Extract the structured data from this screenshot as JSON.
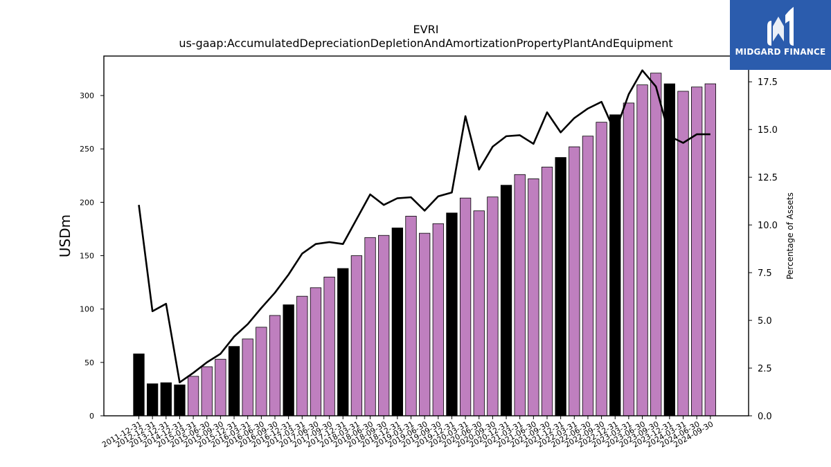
{
  "brand": {
    "name": "MIDGARD FINANCE",
    "bg_color": "#2b5cad"
  },
  "chart_data": {
    "type": "bar",
    "title": "EVRI",
    "subtitle": "us-gaap:AccumulatedDepreciationDepletionAndAmortizationPropertyPlantAndEquipment",
    "ylabel": "USDm",
    "y2label": "Percentage of Assets",
    "ylim": [
      0,
      337
    ],
    "y2lim": [
      0,
      18.85
    ],
    "yticks": [
      0,
      50,
      100,
      150,
      200,
      250,
      300
    ],
    "y2ticks": [
      "0.0",
      "2.5",
      "5.0",
      "7.5",
      "10.0",
      "12.5",
      "15.0",
      "17.5"
    ],
    "categories": [
      "2011-12-31",
      "2012-12-31",
      "2013-12-31",
      "2014-12-31",
      "2015-03-31",
      "2015-06-30",
      "2015-09-30",
      "2015-12-31",
      "2016-03-31",
      "2016-06-30",
      "2016-09-30",
      "2016-12-31",
      "2017-03-31",
      "2017-06-30",
      "2017-09-30",
      "2017-12-31",
      "2018-03-31",
      "2018-06-30",
      "2018-09-30",
      "2018-12-31",
      "2019-03-31",
      "2019-06-30",
      "2019-09-30",
      "2019-12-31",
      "2020-03-31",
      "2020-06-30",
      "2020-09-30",
      "2020-12-31",
      "2021-03-31",
      "2021-06-30",
      "2021-09-30",
      "2021-12-31",
      "2022-03-31",
      "2022-06-30",
      "2022-09-30",
      "2022-12-31",
      "2023-03-31",
      "2023-06-30",
      "2023-09-30",
      "2023-12-31",
      "2024-03-31",
      "2024-06-30",
      "2024-09-30"
    ],
    "series": [
      {
        "kind": "bar",
        "values": [
          58,
          30,
          31,
          29,
          37,
          46,
          53,
          65,
          72,
          83,
          94,
          104,
          112,
          120,
          130,
          138,
          150,
          167,
          169,
          176,
          187,
          171,
          180,
          190,
          204,
          192,
          205,
          216,
          226,
          222,
          233,
          242,
          252,
          262,
          275,
          282,
          293,
          310,
          321,
          311,
          304,
          308,
          311
        ],
        "bar_kinds": [
          "annual",
          "annual",
          "annual",
          "annual",
          "quarterly",
          "quarterly",
          "quarterly",
          "annual",
          "quarterly",
          "quarterly",
          "quarterly",
          "annual",
          "quarterly",
          "quarterly",
          "quarterly",
          "annual",
          "quarterly",
          "quarterly",
          "quarterly",
          "annual",
          "quarterly",
          "quarterly",
          "quarterly",
          "annual",
          "quarterly",
          "quarterly",
          "quarterly",
          "annual",
          "quarterly",
          "quarterly",
          "quarterly",
          "annual",
          "quarterly",
          "quarterly",
          "quarterly",
          "annual",
          "quarterly",
          "quarterly",
          "quarterly",
          "annual",
          "quarterly",
          "quarterly",
          "quarterly"
        ],
        "colors": {
          "annual": "#000000",
          "quarterly": "#bf7fbf"
        }
      },
      {
        "kind": "line",
        "axis": "right",
        "color": "#000000",
        "values": [
          11.05,
          5.48,
          5.87,
          1.75,
          2.25,
          2.8,
          3.25,
          4.15,
          4.8,
          5.65,
          6.45,
          7.4,
          8.5,
          9.0,
          9.1,
          9.0,
          10.3,
          11.6,
          11.05,
          11.4,
          11.45,
          10.75,
          11.5,
          11.7,
          15.7,
          12.9,
          14.1,
          14.65,
          14.7,
          14.25,
          15.9,
          14.85,
          15.6,
          16.1,
          16.45,
          14.85,
          16.85,
          18.1,
          17.25,
          14.65,
          14.3,
          14.75,
          14.75
        ]
      }
    ],
    "grid": false,
    "legend": "none"
  }
}
